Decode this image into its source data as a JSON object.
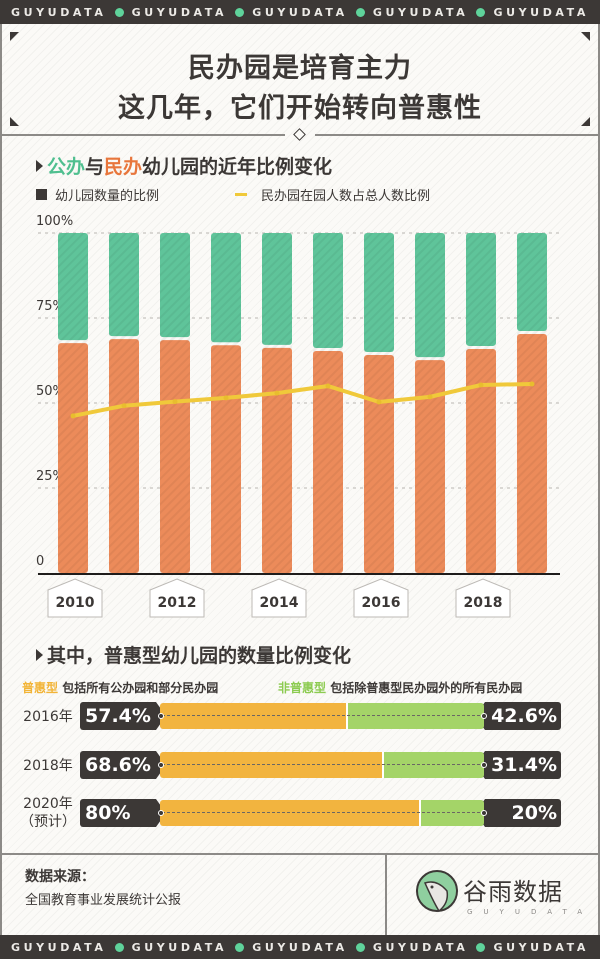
{
  "ribbon": {
    "word": "GUYUDATA",
    "repeat": 5,
    "dot_color": "#5fd39b"
  },
  "header": {
    "title_line1": "民办园是培育主力",
    "title_line2": "这几年，它们开始转向普惠性"
  },
  "section1": {
    "title_part1": "公办",
    "title_part2": "与",
    "title_part3": "民办",
    "title_part4": "幼儿园的近年比例变化",
    "legend_bar": "幼儿园数量的比例",
    "legend_line": "民办园在园人数占总人数比例"
  },
  "colors": {
    "public": "#5fc49a",
    "private": "#ec8b5a",
    "line": "#f0c93a",
    "puhui": "#f2b43f",
    "non_puhui": "#a4d468",
    "dark": "#3c3836"
  },
  "chart_data": {
    "type": "bar",
    "stacked": true,
    "title": "公办与民办幼儿园的近年比例变化",
    "xlabel": "",
    "ylabel": "",
    "ylim": [
      0,
      100
    ],
    "yticks": [
      "0",
      "25%",
      "50%",
      "75%",
      "100%"
    ],
    "ytick_values": [
      0,
      25,
      50,
      75,
      100
    ],
    "x": [
      2010,
      2011,
      2012,
      2013,
      2014,
      2015,
      2016,
      2017,
      2018,
      2019
    ],
    "xtick_labels": [
      "2010",
      "2012",
      "2014",
      "2016",
      "2018"
    ],
    "grid": true,
    "legend_position": "top-left",
    "series": [
      {
        "name": "民办幼儿园数量比例",
        "type": "bar",
        "values": [
          67.6,
          68.8,
          68.5,
          67.0,
          66.2,
          65.3,
          64.1,
          62.6,
          65.9,
          70.3
        ]
      },
      {
        "name": "公办幼儿园数量比例",
        "type": "bar",
        "values": [
          32.4,
          31.2,
          31.5,
          33.0,
          33.8,
          34.7,
          35.9,
          37.4,
          34.1,
          29.7
        ]
      },
      {
        "name": "民办园在园人数占总人数比例",
        "type": "line",
        "values": [
          46.2,
          49.2,
          50.4,
          51.5,
          52.9,
          55.0,
          50.3,
          51.8,
          55.3,
          55.6
        ]
      }
    ]
  },
  "section2": {
    "title": "其中，普惠型幼儿园的数量比例变化",
    "key_puhui": "普惠型",
    "desc_puhui": "包括所有公办园和部分民办园",
    "key_non_puhui": "非普惠型",
    "desc_non_puhui": "包括除普惠型民办园外的所有民办园",
    "rows": [
      {
        "year": "2016年",
        "note": "",
        "puhui_label": "57.4%",
        "puhui": 57.4,
        "non_puhui_label": "42.6%",
        "non_puhui": 42.6
      },
      {
        "year": "2018年",
        "note": "",
        "puhui_label": "68.6%",
        "puhui": 68.6,
        "non_puhui_label": "31.4%",
        "non_puhui": 31.4
      },
      {
        "year": "2020年",
        "note": "（预计）",
        "puhui_label": "80%",
        "puhui": 80,
        "non_puhui_label": "20%",
        "non_puhui": 20
      }
    ]
  },
  "footer": {
    "source_label": "数据来源：",
    "source_value": "全国教育事业发展统计公报",
    "logo_text": "谷雨数据",
    "logo_sub": "GUYUDATA"
  }
}
